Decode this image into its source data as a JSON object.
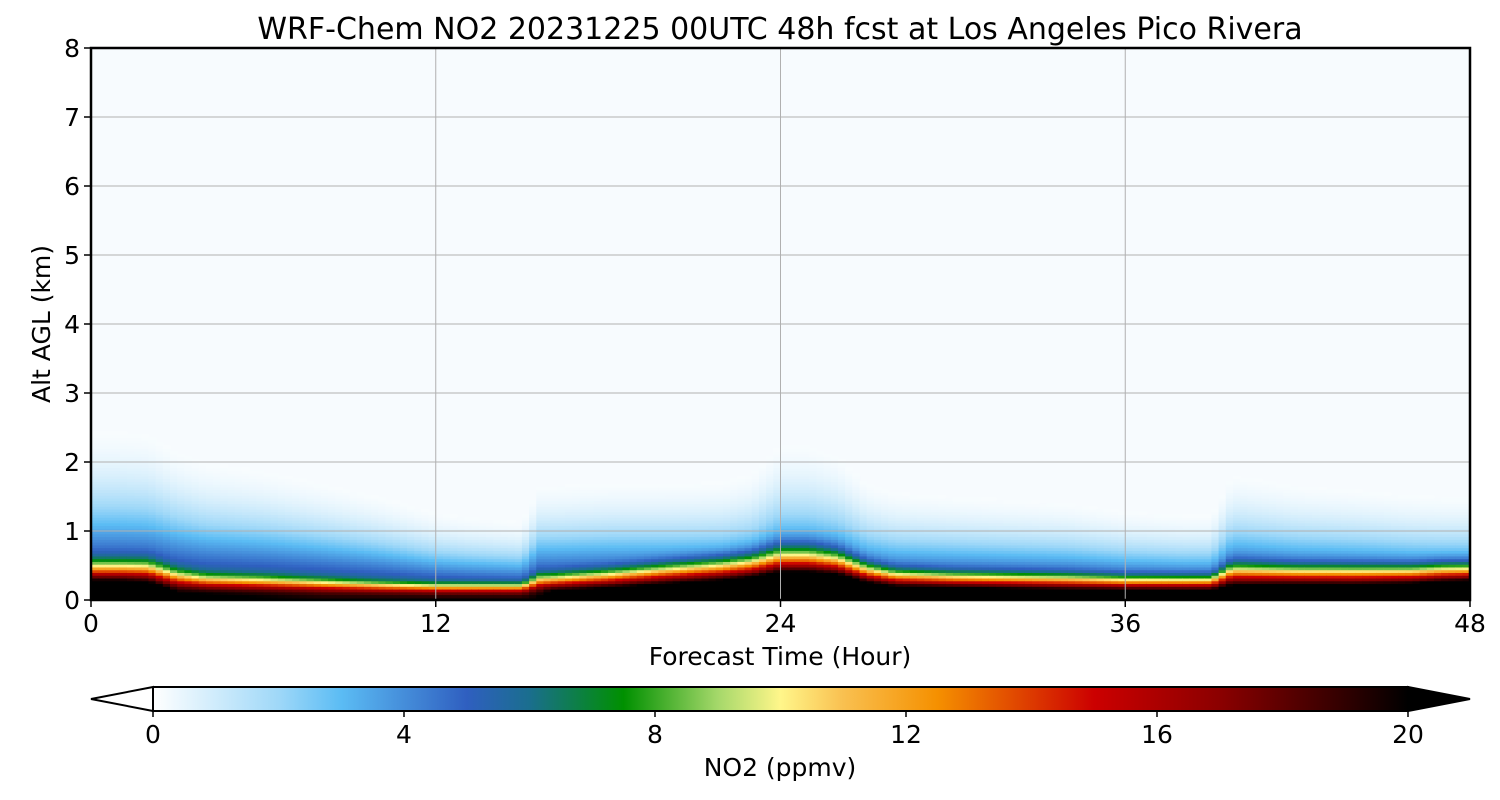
{
  "chart_data": {
    "type": "heatmap",
    "title": "WRF-Chem NO2  20231225 00UTC 48h fcst at Los Angeles Pico Rivera",
    "xlabel": "Forecast Time (Hour)",
    "ylabel": "Alt AGL (km)",
    "xlim": [
      0,
      48
    ],
    "ylim": [
      0,
      8
    ],
    "xticks": [
      "0",
      "12",
      "24",
      "36",
      "48"
    ],
    "yticks": [
      "0",
      "1",
      "2",
      "3",
      "4",
      "5",
      "6",
      "7",
      "8"
    ],
    "grid": true,
    "colorbar": {
      "label": "NO2  (ppmv)",
      "range": [
        0,
        20
      ],
      "extend": "both",
      "ticks": [
        "0",
        "4",
        "8",
        "12",
        "16",
        "20"
      ],
      "stops": [
        {
          "value": 0,
          "color": "#ffffff"
        },
        {
          "value": 2,
          "color": "#9fd8f8"
        },
        {
          "value": 3,
          "color": "#5bbcf4"
        },
        {
          "value": 5,
          "color": "#2f5fc0"
        },
        {
          "value": 6,
          "color": "#1a6e8e"
        },
        {
          "value": 7.5,
          "color": "#009000"
        },
        {
          "value": 9,
          "color": "#a5d86a"
        },
        {
          "value": 10,
          "color": "#fff68a"
        },
        {
          "value": 11,
          "color": "#f9c050"
        },
        {
          "value": 12.5,
          "color": "#f59000"
        },
        {
          "value": 15,
          "color": "#cc0000"
        },
        {
          "value": 17,
          "color": "#8b0000"
        },
        {
          "value": 19,
          "color": "#300000"
        },
        {
          "value": 20,
          "color": "#000000"
        }
      ]
    },
    "profile_hours": [
      0,
      1,
      2,
      3,
      4,
      6,
      8,
      10,
      12,
      13,
      14,
      15,
      15.6,
      16,
      18,
      20,
      22,
      23,
      24,
      25,
      26,
      27,
      28,
      30,
      34,
      36,
      38,
      39,
      39.7,
      40,
      42,
      44,
      46,
      47,
      48
    ],
    "surface_ppmv": [
      18,
      18,
      17,
      14,
      14,
      13.5,
      13,
      13,
      13,
      13,
      13,
      13,
      13.5,
      15,
      16,
      17,
      18,
      19,
      20,
      20,
      20,
      18,
      17,
      17,
      16,
      16,
      16,
      16,
      16,
      16,
      17,
      17,
      18,
      19,
      20
    ],
    "decay_scale_km": [
      0.45,
      0.45,
      0.45,
      0.35,
      0.3,
      0.28,
      0.25,
      0.22,
      0.2,
      0.2,
      0.2,
      0.2,
      0.3,
      0.3,
      0.35,
      0.42,
      0.48,
      0.52,
      0.6,
      0.6,
      0.55,
      0.42,
      0.35,
      0.32,
      0.3,
      0.28,
      0.28,
      0.28,
      0.42,
      0.42,
      0.4,
      0.4,
      0.4,
      0.42,
      0.42
    ],
    "tail_scale_km": [
      0.8,
      0.8,
      0.78,
      0.75,
      0.72,
      0.68,
      0.62,
      0.55,
      0.45,
      0.42,
      0.4,
      0.38,
      0.55,
      0.55,
      0.52,
      0.45,
      0.4,
      0.42,
      0.55,
      0.55,
      0.52,
      0.45,
      0.45,
      0.45,
      0.42,
      0.38,
      0.35,
      0.35,
      0.5,
      0.5,
      0.45,
      0.42,
      0.38,
      0.35,
      0.35
    ]
  }
}
